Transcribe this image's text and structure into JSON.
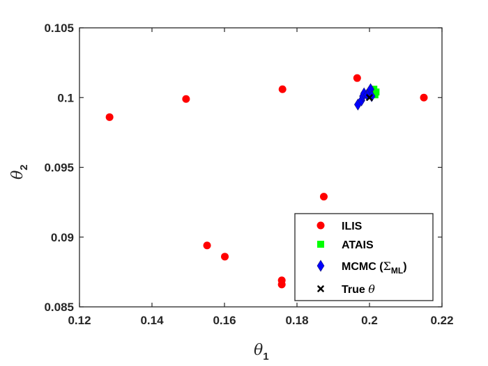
{
  "chart_data": {
    "type": "scatter",
    "title": "",
    "xlabel": {
      "symbol": "θ",
      "sub": "1"
    },
    "ylabel": {
      "symbol": "θ",
      "sub": "2"
    },
    "xlim": [
      0.12,
      0.22
    ],
    "ylim": [
      0.085,
      0.105
    ],
    "xticks": [
      0.12,
      0.14,
      0.16,
      0.18,
      0.2,
      0.22
    ],
    "yticks": [
      0.085,
      0.09,
      0.095,
      0.1,
      0.105
    ],
    "xtick_labels": [
      "0.12",
      "0.14",
      "0.16",
      "0.18",
      "0.2",
      "0.22"
    ],
    "ytick_labels": [
      "0.085",
      "0.09",
      "0.095",
      "0.1",
      "0.105"
    ],
    "grid": false,
    "legend_position": "bottom-right",
    "series": [
      {
        "name": "ILIS",
        "marker": "circle",
        "color": "#ff0000",
        "x": [
          0.1283,
          0.1494,
          0.1552,
          0.1601,
          0.176,
          0.1758,
          0.1758,
          0.1874,
          0.1966,
          0.215
        ],
        "y": [
          0.0986,
          0.0999,
          0.0894,
          0.0886,
          0.1006,
          0.0869,
          0.0866,
          0.0929,
          0.1014,
          0.1
        ]
      },
      {
        "name": "ATAIS",
        "marker": "square",
        "color": "#00ff00",
        "x": [
          0.2005,
          0.2012,
          0.2018,
          0.2015,
          0.2008
        ],
        "y": [
          0.1004,
          0.1006,
          0.1004,
          0.1002,
          0.1005
        ]
      },
      {
        "name": "MCMC (Σ_ML)",
        "marker": "diamond",
        "color": "#0000ff",
        "x": [
          0.1968,
          0.1978,
          0.1982,
          0.1985,
          0.1993,
          0.2,
          0.2003,
          0.2006
        ],
        "y": [
          0.0995,
          0.0998,
          0.1001,
          0.1003,
          0.1002,
          0.1004,
          0.1006,
          0.1001
        ]
      },
      {
        "name": "True θ",
        "marker": "x-bold",
        "color": "#000000",
        "x": [
          0.2
        ],
        "y": [
          0.1
        ]
      }
    ],
    "legend": {
      "entries": [
        {
          "text": "ILIS"
        },
        {
          "text": "ATAIS"
        },
        {
          "text_main": "MCMC (",
          "text_sigma": "Σ",
          "text_sub": "ML",
          "text_close": ")"
        },
        {
          "text_main": "True ",
          "text_theta": "θ"
        }
      ]
    }
  },
  "colors": {
    "axis": "#262626",
    "background": "#ffffff"
  }
}
